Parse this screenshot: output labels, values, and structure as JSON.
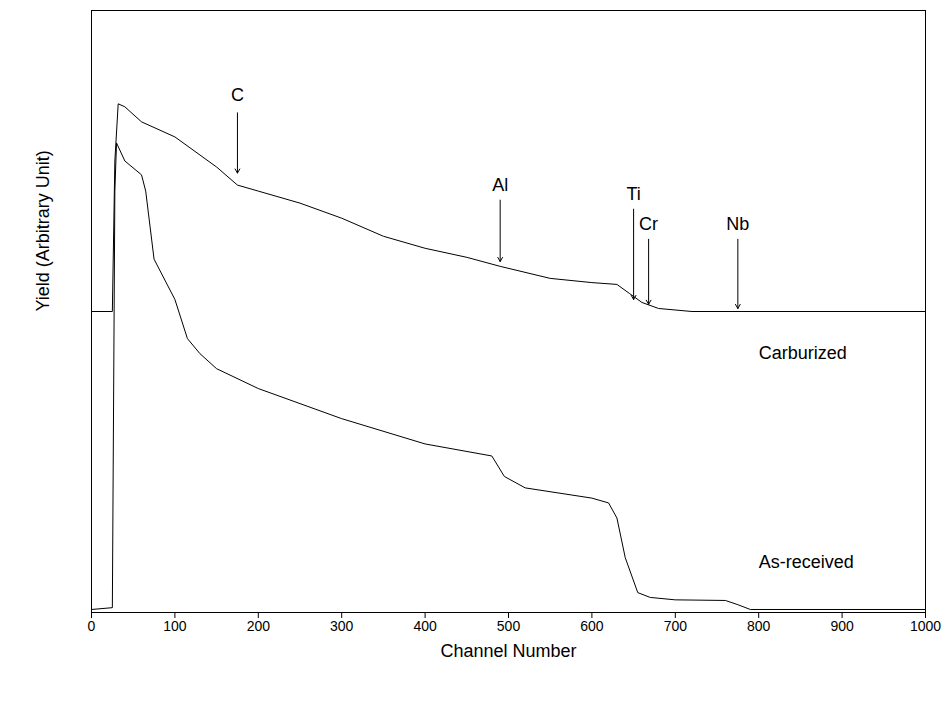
{
  "chart_data": {
    "type": "line",
    "x_label": "Channel Number",
    "y_label": "Yield (Arbitrary Unit)",
    "xlim": [
      0,
      1000
    ],
    "ylim": [
      0,
      100
    ],
    "xticks": [
      0,
      100,
      200,
      300,
      400,
      500,
      600,
      700,
      800,
      900,
      1000
    ],
    "yticks": [],
    "tick_labels": "x",
    "series": [
      {
        "name": "Carburized",
        "color": "#000000",
        "label_x": 800,
        "label_y": 43,
        "x": [
          0,
          25,
          28,
          32,
          40,
          60,
          100,
          150,
          175,
          200,
          250,
          300,
          350,
          400,
          450,
          490,
          550,
          600,
          630,
          645,
          660,
          680,
          720,
          1000
        ],
        "values": [
          50,
          50,
          75,
          84.5,
          84,
          81.5,
          79,
          74,
          71,
          70,
          68,
          65.5,
          62.5,
          60.5,
          59,
          57.5,
          55.5,
          54.8,
          54.5,
          53,
          51.5,
          50.5,
          50,
          50
        ]
      },
      {
        "name": "As-received",
        "color": "#000000",
        "label_x": 800,
        "label_y": 8.3,
        "x": [
          0,
          25,
          28,
          30,
          40,
          60,
          65,
          75,
          100,
          115,
          130,
          150,
          200,
          300,
          400,
          480,
          495,
          520,
          600,
          620,
          630,
          640,
          655,
          670,
          700,
          760,
          775,
          790,
          1000
        ],
        "values": [
          0.5,
          0.8,
          70,
          78,
          75,
          72.7,
          70,
          58.7,
          52,
          45.5,
          43,
          40.5,
          37.2,
          32.2,
          28,
          26,
          22.6,
          20.7,
          19,
          18.2,
          15.7,
          9.1,
          3.3,
          2.5,
          2.1,
          2,
          1.3,
          0.5,
          0.5
        ]
      }
    ],
    "annotations": [
      {
        "text": "C",
        "x": 175,
        "y": 86,
        "arrow_y": [
          83,
          73
        ]
      },
      {
        "text": "Al",
        "x": 490,
        "y": 71,
        "arrow_y": [
          68.5,
          58.3
        ]
      },
      {
        "text": "Ti",
        "x": 650,
        "y": 69.4,
        "arrow_y": [
          67,
          52
        ]
      },
      {
        "text": "Cr",
        "x": 668,
        "y": 64.5,
        "arrow_y": [
          62,
          51.2
        ]
      },
      {
        "text": "Nb",
        "x": 775,
        "y": 64.5,
        "arrow_y": [
          62,
          50.5
        ]
      }
    ]
  }
}
